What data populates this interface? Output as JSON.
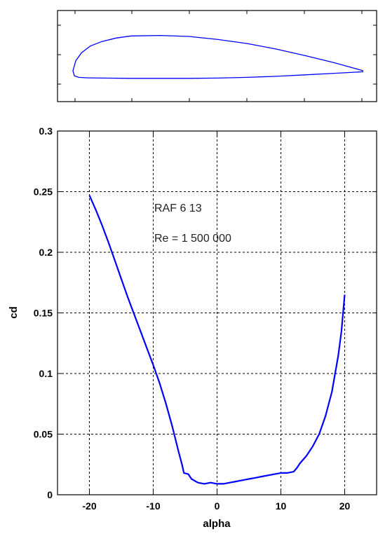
{
  "colors": {
    "curve": "#0000ff",
    "airfoil": "#0000ff",
    "axes": "#000000",
    "background": "#ffffff"
  },
  "chart_data": [
    {
      "type": "line",
      "description_role": "airfoil-profile",
      "title": "",
      "xlabel": "",
      "ylabel": "",
      "xlim": [
        0,
        1
      ],
      "ylim": [
        -0.06,
        0.12
      ],
      "grid": false,
      "series": [
        {
          "points": [
            [
              1.0,
              0.0
            ],
            [
              0.95,
              0.008
            ],
            [
              0.9,
              0.016
            ],
            [
              0.8,
              0.03
            ],
            [
              0.7,
              0.043
            ],
            [
              0.6,
              0.054
            ],
            [
              0.5,
              0.062
            ],
            [
              0.4,
              0.068
            ],
            [
              0.3,
              0.07
            ],
            [
              0.2,
              0.069
            ],
            [
              0.15,
              0.065
            ],
            [
              0.1,
              0.058
            ],
            [
              0.06,
              0.049
            ],
            [
              0.03,
              0.036
            ],
            [
              0.01,
              0.02
            ],
            [
              0.0,
              0.0
            ],
            [
              0.005,
              -0.01
            ],
            [
              0.02,
              -0.013
            ],
            [
              0.05,
              -0.014
            ],
            [
              0.1,
              -0.0145
            ],
            [
              0.2,
              -0.015
            ],
            [
              0.3,
              -0.015
            ],
            [
              0.4,
              -0.015
            ],
            [
              0.5,
              -0.0145
            ],
            [
              0.6,
              -0.013
            ],
            [
              0.7,
              -0.011
            ],
            [
              0.8,
              -0.008
            ],
            [
              0.9,
              -0.005
            ],
            [
              1.0,
              -0.002
            ]
          ]
        }
      ]
    },
    {
      "type": "line",
      "title": "",
      "xlabel": "alpha",
      "ylabel": "cd",
      "xlim": [
        -25,
        25
      ],
      "ylim": [
        0,
        0.3
      ],
      "grid": true,
      "xticks": [
        -20,
        -10,
        0,
        10,
        20
      ],
      "xtick_labels": [
        "-20",
        "-10",
        "0",
        "10",
        "20"
      ],
      "yticks": [
        0,
        0.05,
        0.1,
        0.15,
        0.2,
        0.25,
        0.3
      ],
      "ytick_labels": [
        "0",
        "0.05",
        "0.1",
        "0.15",
        "0.2",
        "0.25",
        "0.3"
      ],
      "annotations": [
        "RAF 6 13",
        "Re = 1 500 000"
      ],
      "series": [
        {
          "x": [
            -20,
            -19,
            -18,
            -17,
            -16,
            -15,
            -14,
            -13,
            -12,
            -11,
            -10,
            -9,
            -8,
            -7,
            -6,
            -5.5,
            -5.2,
            -4.5,
            -4,
            -3,
            -2,
            -1,
            0,
            1,
            2,
            3,
            4,
            5,
            6,
            7,
            8,
            9,
            10,
            11,
            12,
            12.5,
            13,
            14,
            15,
            16,
            17,
            18,
            19,
            19.5,
            20
          ],
          "y": [
            0.247,
            0.235,
            0.222,
            0.208,
            0.193,
            0.178,
            0.163,
            0.149,
            0.135,
            0.121,
            0.107,
            0.092,
            0.075,
            0.056,
            0.035,
            0.025,
            0.018,
            0.017,
            0.013,
            0.01,
            0.009,
            0.01,
            0.009,
            0.009,
            0.01,
            0.011,
            0.012,
            0.013,
            0.014,
            0.015,
            0.016,
            0.017,
            0.018,
            0.018,
            0.019,
            0.022,
            0.026,
            0.032,
            0.04,
            0.05,
            0.065,
            0.085,
            0.115,
            0.135,
            0.165
          ]
        }
      ]
    }
  ]
}
